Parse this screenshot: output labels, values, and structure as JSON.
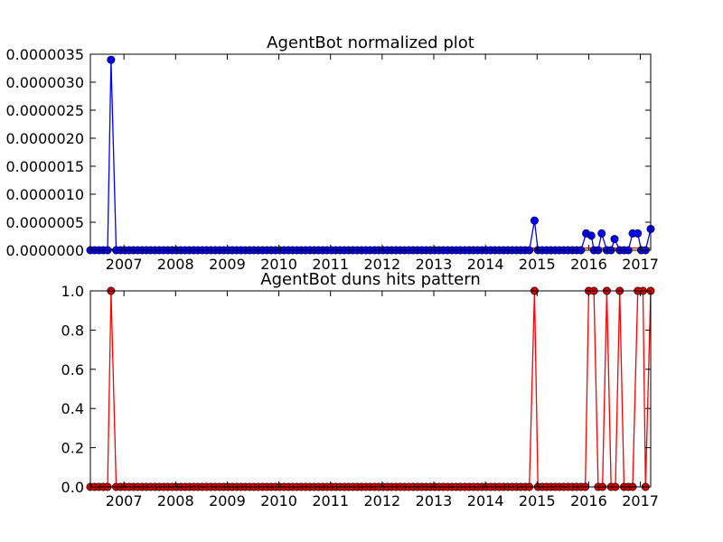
{
  "chart_data": [
    {
      "type": "line",
      "title": "AgentBot normalized plot",
      "xlabel": "",
      "ylabel": "",
      "x_ticks": [
        "2007",
        "2008",
        "2009",
        "2010",
        "2011",
        "2012",
        "2013",
        "2014",
        "2015",
        "2016",
        "2017"
      ],
      "y_ticks": [
        "0.0000000",
        "0.0000005",
        "0.0000010",
        "0.0000015",
        "0.0000020",
        "0.0000025",
        "0.0000030",
        "0.0000035"
      ],
      "xlim": [
        2006.35,
        2017.2
      ],
      "ylim": [
        0,
        3.5e-06
      ],
      "grid": false,
      "legend": "none",
      "series": [
        {
          "color": "#0000ff",
          "marker": "circle",
          "x": [
            2006.35,
            2006.45,
            2006.55,
            2006.65,
            2006.75,
            2014.95,
            2015.95,
            2016.05,
            2016.25,
            2016.5,
            2016.85,
            2016.95,
            2017.2
          ],
          "y": [
            0,
            0,
            0,
            0,
            3.4e-06,
            5.3e-07,
            3e-07,
            2.6e-07,
            3e-07,
            2e-07,
            3e-07,
            3e-07,
            3.8e-07
          ]
        },
        {
          "color": "#ff0000",
          "marker": "none",
          "x": [
            2006.35,
            2017.2
          ],
          "y": [
            2e-08,
            4e-08
          ]
        }
      ]
    },
    {
      "type": "line",
      "title": "AgentBot duns hits pattern",
      "xlabel": "",
      "ylabel": "",
      "x_ticks": [
        "2007",
        "2008",
        "2009",
        "2010",
        "2011",
        "2012",
        "2013",
        "2014",
        "2015",
        "2016",
        "2017"
      ],
      "y_ticks": [
        "0.0",
        "0.2",
        "0.4",
        "0.6",
        "0.8",
        "1.0"
      ],
      "xlim": [
        2006.35,
        2017.2
      ],
      "ylim": [
        0,
        1
      ],
      "grid": false,
      "legend": "none",
      "series": [
        {
          "color": "#ff0000",
          "marker_color": "#cc0000",
          "marker": "circle",
          "x": [
            2006.75,
            2014.95,
            2016.0,
            2016.1,
            2016.35,
            2016.6,
            2016.95,
            2017.05,
            2017.2
          ],
          "y": [
            1,
            1,
            1,
            1,
            1,
            1,
            1,
            1,
            1
          ]
        }
      ]
    }
  ]
}
